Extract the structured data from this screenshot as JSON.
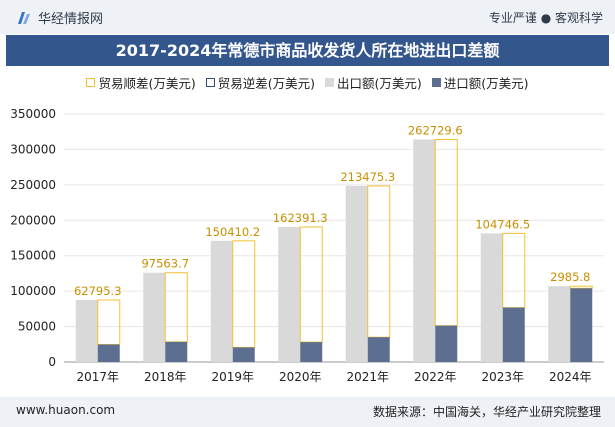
{
  "header": {
    "brand": "华经情报网",
    "tagline": "专业严谨 ● 客观科学"
  },
  "title": "2017-2024年常德市商品收发货人所在地进出口差额",
  "legend": {
    "surplus": "贸易顺差(万美元)",
    "deficit": "贸易逆差(万美元)",
    "export": "出口额(万美元)",
    "import": "进口额(万美元)"
  },
  "colors": {
    "surplus": "#f2c231",
    "deficit": "#2f4e7a",
    "export": "#d9d9d9",
    "import": "#5c6f91",
    "title_bg": "#33568c"
  },
  "footer": {
    "url": "www.huaon.com",
    "source": "数据来源：中国海关，华经产业研究院整理"
  },
  "chart_data": {
    "type": "bar",
    "title": "2017-2024年常德市商品收发货人所在地进出口差额",
    "categories": [
      "2017年",
      "2018年",
      "2019年",
      "2020年",
      "2021年",
      "2022年",
      "2023年",
      "2024年"
    ],
    "series": [
      {
        "name": "出口额(万美元)",
        "values": [
          87500,
          126000,
          171000,
          190500,
          248500,
          314000,
          181500,
          107000
        ]
      },
      {
        "name": "进口额(万美元)",
        "values": [
          24700,
          28400,
          20600,
          28100,
          35000,
          51270,
          76753,
          104014
        ]
      },
      {
        "name": "贸易顺差(万美元)",
        "values": [
          62795.3,
          97563.7,
          150410.2,
          162391.3,
          213475.3,
          262729.6,
          104746.5,
          2985.8
        ]
      }
    ],
    "data_labels": [
      "62795.3",
      "97563.7",
      "150410.2",
      "162391.3",
      "213475.3",
      "262729.6",
      "104746.5",
      "2985.8"
    ],
    "yticks": [
      "0",
      "50000",
      "100000",
      "150000",
      "200000",
      "250000",
      "300000",
      "350000"
    ],
    "ylim": [
      0,
      350000
    ],
    "xlabel": "",
    "ylabel": ""
  }
}
